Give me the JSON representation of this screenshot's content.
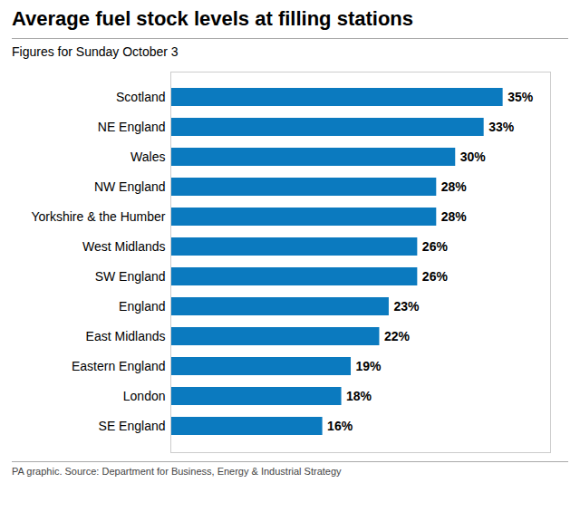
{
  "chart_data": {
    "type": "bar",
    "orientation": "horizontal",
    "title": "Average fuel stock levels at filling stations",
    "subtitle": "Figures for Sunday October 3",
    "footnote": "PA graphic. Source: Department for Business, Energy & Industrial Strategy",
    "categories": [
      "Scotland",
      "NE England",
      "Wales",
      "NW England",
      "Yorkshire & the Humber",
      "West Midlands",
      "SW England",
      "England",
      "East Midlands",
      "Eastern England",
      "London",
      "SE England"
    ],
    "values": [
      35,
      33,
      30,
      28,
      28,
      26,
      26,
      23,
      22,
      19,
      18,
      16
    ],
    "value_labels": [
      "35%",
      "33%",
      "30%",
      "28%",
      "28%",
      "26%",
      "26%",
      "23%",
      "22%",
      "19%",
      "18%",
      "16%"
    ],
    "data_labels": true,
    "color": "#0b7abf",
    "xlim": [
      0,
      40
    ],
    "tick_labels": "y",
    "grid": false
  }
}
